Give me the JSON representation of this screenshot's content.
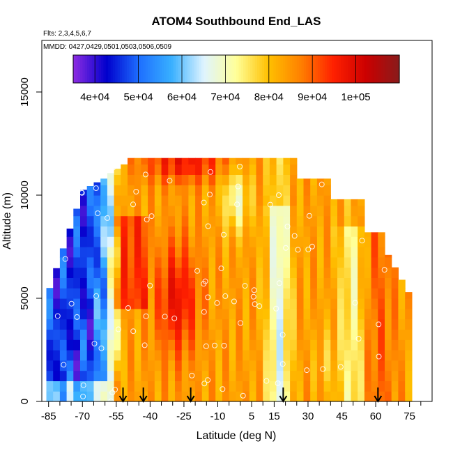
{
  "chart_data": {
    "type": "heatmap",
    "title": "ATOM4 Southbound End_LAS",
    "flights_text": "Flts: 2,3,4,5,6,7",
    "mmdd_text": "MMDD: 0427,0429,0501,0503,0506,0509",
    "xlabel": "Latitude (deg N)",
    "ylabel": "Altitude (m)",
    "xlim": [
      -88,
      85
    ],
    "ylim": [
      0,
      17500
    ],
    "x_tick_labels": [
      "-85",
      "-70",
      "-55",
      "-40",
      "-25",
      "-10",
      "5",
      "15",
      "30",
      "45",
      "60",
      "75"
    ],
    "x_tick_values": [
      -85,
      -70,
      -55,
      -40,
      -25,
      -10,
      5,
      15,
      30,
      45,
      60,
      75
    ],
    "x_minor_ticks": [
      -80,
      -75,
      -65,
      -60,
      -50,
      -45,
      -35,
      -30,
      -20,
      -15,
      -5,
      0,
      10,
      20,
      25,
      35,
      40,
      50,
      55,
      65,
      70,
      80
    ],
    "y_ticks": [
      0,
      5000,
      10000,
      15000
    ],
    "y_tick_labels": [
      "0",
      "5000",
      "10000",
      "15000"
    ],
    "colorbar": {
      "range": [
        35000,
        110000
      ],
      "tick_values": [
        40000,
        50000,
        60000,
        70000,
        80000,
        90000,
        100000
      ],
      "tick_labels": [
        "4e+04",
        "5e+04",
        "6e+04",
        "7e+04",
        "8e+04",
        "9e+04",
        "1e+05"
      ],
      "colors": [
        "#8a2be2",
        "#0000cd",
        "#1e6fff",
        "#38b0ff",
        "#dff4ff",
        "#ffff99",
        "#ffc000",
        "#ff8000",
        "#ff2000",
        "#cc0000",
        "#8b1a1a"
      ]
    },
    "profile_markers_lat": [
      -52,
      -43,
      -22,
      19,
      61
    ],
    "grid": false,
    "legend": "colorbar-top"
  }
}
